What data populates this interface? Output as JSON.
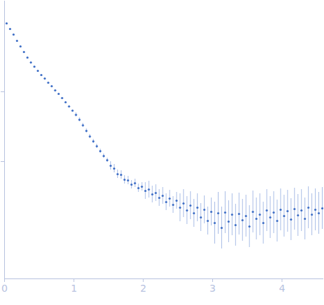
{
  "chart_data": {
    "type": "scatter",
    "color": "#3f6fc6",
    "marker": "circle",
    "tick_labels": "x",
    "xlim": [
      0,
      4.6
    ],
    "xticks": [
      0,
      1,
      2,
      3,
      4
    ],
    "ylim": [
      -1.68,
      2.3
    ],
    "yticks": [
      0,
      1
    ],
    "x": [
      0.03,
      0.08,
      0.13,
      0.18,
      0.23,
      0.28,
      0.33,
      0.38,
      0.43,
      0.48,
      0.53,
      0.58,
      0.63,
      0.68,
      0.73,
      0.78,
      0.83,
      0.88,
      0.93,
      0.98,
      1.03,
      1.08,
      1.13,
      1.18,
      1.23,
      1.28,
      1.33,
      1.38,
      1.43,
      1.48,
      1.53,
      1.58,
      1.63,
      1.68,
      1.73,
      1.78,
      1.83,
      1.88,
      1.93,
      1.98,
      2.03,
      2.08,
      2.13,
      2.18,
      2.23,
      2.28,
      2.33,
      2.38,
      2.43,
      2.48,
      2.53,
      2.58,
      2.63,
      2.68,
      2.73,
      2.78,
      2.83,
      2.88,
      2.93,
      2.98,
      3.03,
      3.08,
      3.13,
      3.18,
      3.23,
      3.28,
      3.33,
      3.38,
      3.43,
      3.48,
      3.53,
      3.58,
      3.63,
      3.68,
      3.73,
      3.78,
      3.83,
      3.88,
      3.93,
      3.98,
      4.03,
      4.08,
      4.13,
      4.18,
      4.23,
      4.28,
      4.33,
      4.38,
      4.43,
      4.48,
      4.53,
      4.58
    ],
    "values": [
      1.98,
      1.9,
      1.82,
      1.73,
      1.65,
      1.57,
      1.49,
      1.42,
      1.36,
      1.3,
      1.24,
      1.19,
      1.13,
      1.08,
      1.02,
      0.97,
      0.91,
      0.85,
      0.79,
      0.73,
      0.67,
      0.6,
      0.52,
      0.44,
      0.36,
      0.29,
      0.22,
      0.15,
      0.08,
      0.02,
      -0.06,
      -0.1,
      -0.18,
      -0.19,
      -0.26,
      -0.27,
      -0.33,
      -0.31,
      -0.38,
      -0.36,
      -0.42,
      -0.4,
      -0.47,
      -0.45,
      -0.52,
      -0.49,
      -0.58,
      -0.53,
      -0.62,
      -0.56,
      -0.66,
      -0.6,
      -0.7,
      -0.63,
      -0.74,
      -0.66,
      -0.8,
      -0.69,
      -0.85,
      -0.72,
      -0.88,
      -0.74,
      -0.95,
      -0.73,
      -0.86,
      -0.76,
      -0.91,
      -0.75,
      -0.84,
      -0.78,
      -0.93,
      -0.72,
      -0.82,
      -0.76,
      -0.88,
      -0.7,
      -0.8,
      -0.73,
      -0.85,
      -0.69,
      -0.78,
      -0.71,
      -0.83,
      -0.68,
      -0.77,
      -0.7,
      -0.82,
      -0.66,
      -0.76,
      -0.69,
      -0.74,
      -0.67
    ],
    "errors": [
      0.01,
      0.01,
      0.01,
      0.01,
      0.01,
      0.01,
      0.01,
      0.01,
      0.01,
      0.01,
      0.01,
      0.01,
      0.01,
      0.01,
      0.01,
      0.01,
      0.01,
      0.01,
      0.01,
      0.01,
      0.03,
      0.03,
      0.03,
      0.03,
      0.03,
      0.03,
      0.03,
      0.03,
      0.03,
      0.03,
      0.06,
      0.06,
      0.06,
      0.06,
      0.06,
      0.06,
      0.06,
      0.06,
      0.06,
      0.06,
      0.12,
      0.12,
      0.12,
      0.12,
      0.12,
      0.12,
      0.12,
      0.12,
      0.12,
      0.12,
      0.2,
      0.2,
      0.2,
      0.2,
      0.2,
      0.2,
      0.2,
      0.2,
      0.2,
      0.2,
      0.3,
      0.3,
      0.3,
      0.3,
      0.3,
      0.3,
      0.3,
      0.3,
      0.3,
      0.3,
      0.3,
      0.3,
      0.3,
      0.3,
      0.3,
      0.3,
      0.3,
      0.3,
      0.3,
      0.3,
      0.3,
      0.3,
      0.3,
      0.3,
      0.3,
      0.3,
      0.3,
      0.3,
      0.3,
      0.3,
      0.3,
      0.3
    ]
  }
}
